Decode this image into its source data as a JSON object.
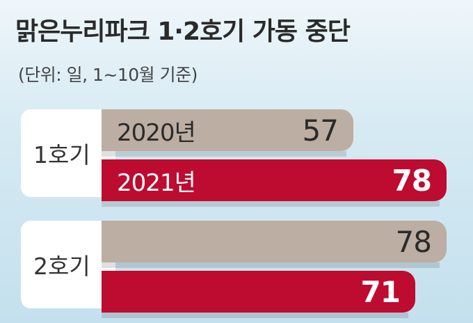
{
  "title": "맑은누리파크 1·2호기 가동 중단",
  "subtitle": "(단위: 일, 1~10월 기준)",
  "colors": {
    "y2020": "#bcaea2",
    "y2021": "#bd0c30",
    "background": "#cfe7f1"
  },
  "chart_data": {
    "type": "bar",
    "orientation": "horizontal",
    "title": "맑은누리파크 1·2호기 가동 중단",
    "subtitle": "(단위: 일, 1~10월 기준)",
    "categories": [
      "1호기",
      "2호기"
    ],
    "series": [
      {
        "name": "2020년",
        "values": [
          57,
          78
        ]
      },
      {
        "name": "2021년",
        "values": [
          78,
          71
        ]
      }
    ],
    "xlim": [
      0,
      78
    ],
    "grid": false,
    "legend": "inline"
  }
}
